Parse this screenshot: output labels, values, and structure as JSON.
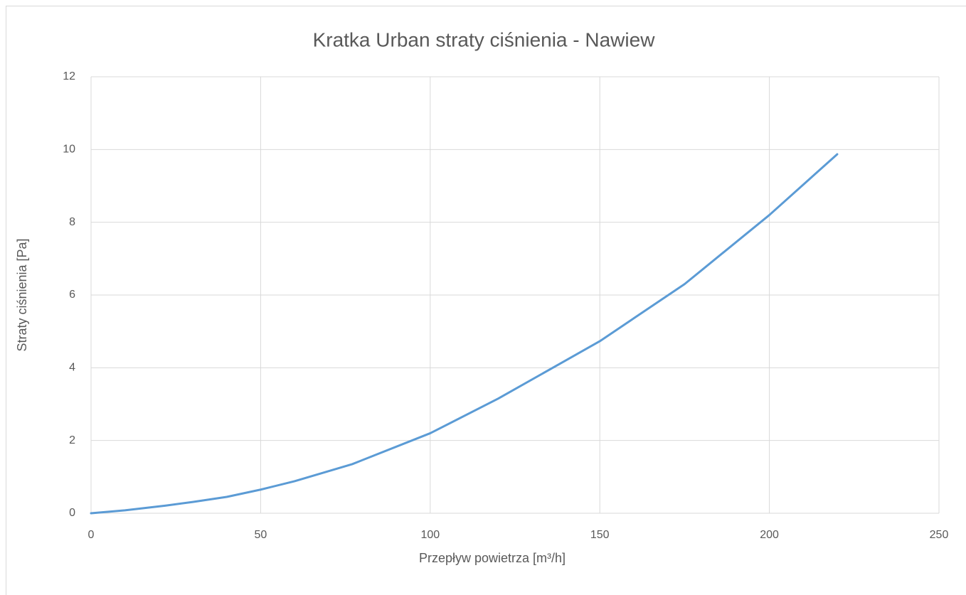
{
  "chart_data": {
    "type": "line",
    "title": "Kratka Urban straty ciśnienia - Nawiew",
    "x_label": "Przepływ powietrza [m³/h]",
    "y_label": "Straty ciśnienia [Pa]",
    "series": [
      {
        "name": "Nawiew",
        "color": "#5b9bd5",
        "x": [
          0,
          10,
          22,
          30,
          40,
          50,
          60,
          77,
          100,
          120,
          150,
          175,
          200,
          220
        ],
        "values": [
          0,
          0.08,
          0.21,
          0.31,
          0.45,
          0.65,
          0.88,
          1.35,
          2.2,
          3.15,
          4.73,
          6.3,
          8.2,
          9.87
        ]
      }
    ],
    "xlim": [
      0,
      250
    ],
    "xticks": [
      0,
      50,
      100,
      150,
      200,
      250
    ],
    "ylim": [
      0,
      12
    ],
    "yticks": [
      0,
      2,
      4,
      6,
      8,
      10,
      12
    ],
    "grid": true
  }
}
